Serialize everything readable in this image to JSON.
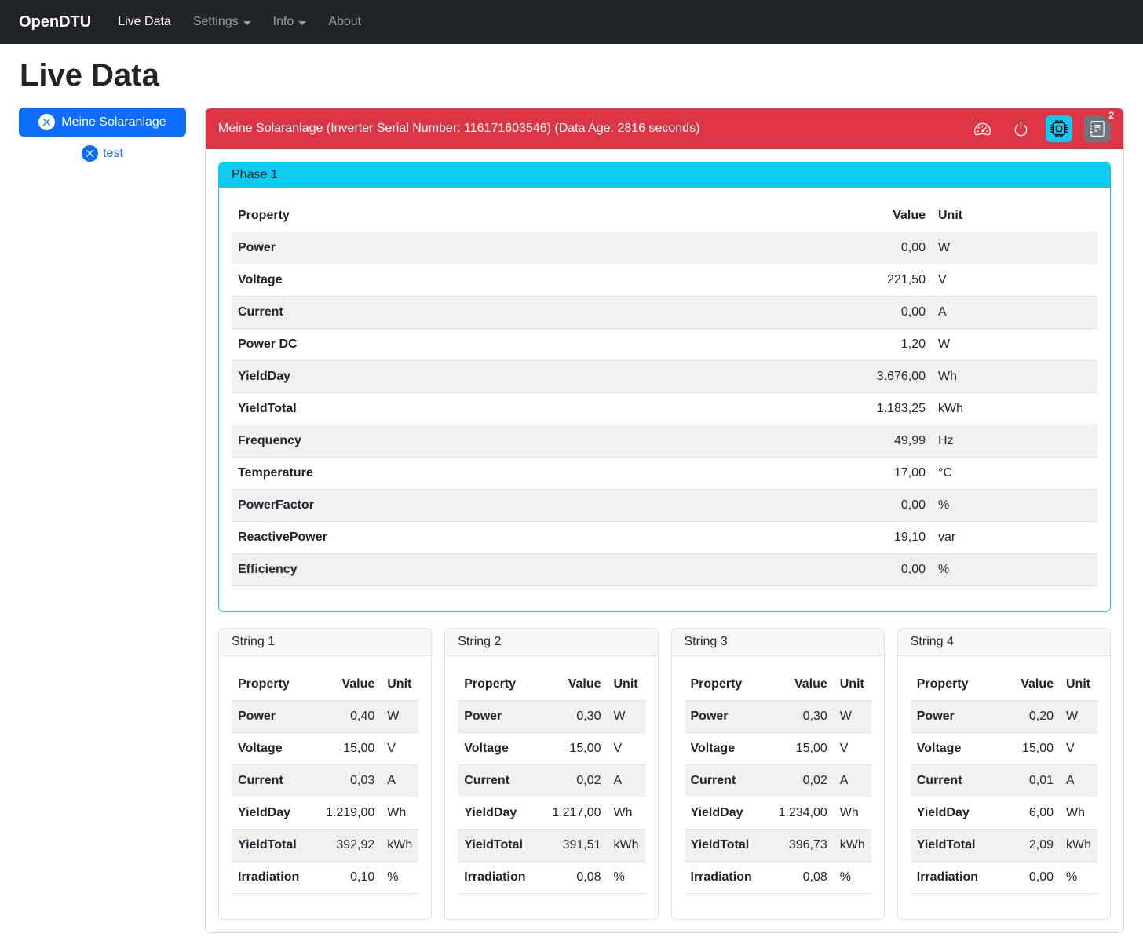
{
  "navbar": {
    "brand": "OpenDTU",
    "items": [
      {
        "label": "Live Data",
        "active": true,
        "dropdown": false
      },
      {
        "label": "Settings",
        "active": false,
        "dropdown": true
      },
      {
        "label": "Info",
        "active": false,
        "dropdown": true
      },
      {
        "label": "About",
        "active": false,
        "dropdown": false
      }
    ]
  },
  "page_title": "Live Data",
  "sidebar": {
    "inverters": [
      {
        "label": "Meine Solaranlage",
        "icon": "x-circle-icon",
        "selected": true
      },
      {
        "label": "test",
        "icon": "x-circle-icon",
        "selected": false
      }
    ]
  },
  "inverter_panel": {
    "header_title": "Meine Solaranlage (Inverter Serial Number: 116171603546) (Data Age: 2816 seconds)",
    "toolbar": {
      "buttons": [
        {
          "icon": "speedometer-icon"
        },
        {
          "icon": "power-icon"
        },
        {
          "icon": "cpu-icon"
        },
        {
          "icon": "journal-text-icon"
        }
      ],
      "events_badge_count": "2"
    }
  },
  "table_columns": {
    "property": "Property",
    "value": "Value",
    "unit": "Unit"
  },
  "phase": {
    "title": "Phase 1",
    "rows": [
      {
        "property": "Power",
        "value": "0,00",
        "unit": "W"
      },
      {
        "property": "Voltage",
        "value": "221,50",
        "unit": "V"
      },
      {
        "property": "Current",
        "value": "0,00",
        "unit": "A"
      },
      {
        "property": "Power DC",
        "value": "1,20",
        "unit": "W"
      },
      {
        "property": "YieldDay",
        "value": "3.676,00",
        "unit": "Wh"
      },
      {
        "property": "YieldTotal",
        "value": "1.183,25",
        "unit": "kWh"
      },
      {
        "property": "Frequency",
        "value": "49,99",
        "unit": "Hz"
      },
      {
        "property": "Temperature",
        "value": "17,00",
        "unit": "°C"
      },
      {
        "property": "PowerFactor",
        "value": "0,00",
        "unit": "%"
      },
      {
        "property": "ReactivePower",
        "value": "19,10",
        "unit": "var"
      },
      {
        "property": "Efficiency",
        "value": "0,00",
        "unit": "%"
      }
    ]
  },
  "strings": [
    {
      "title": "String 1",
      "rows": [
        {
          "property": "Power",
          "value": "0,40",
          "unit": "W"
        },
        {
          "property": "Voltage",
          "value": "15,00",
          "unit": "V"
        },
        {
          "property": "Current",
          "value": "0,03",
          "unit": "A"
        },
        {
          "property": "YieldDay",
          "value": "1.219,00",
          "unit": "Wh"
        },
        {
          "property": "YieldTotal",
          "value": "392,92",
          "unit": "kWh"
        },
        {
          "property": "Irradiation",
          "value": "0,10",
          "unit": "%"
        }
      ]
    },
    {
      "title": "String 2",
      "rows": [
        {
          "property": "Power",
          "value": "0,30",
          "unit": "W"
        },
        {
          "property": "Voltage",
          "value": "15,00",
          "unit": "V"
        },
        {
          "property": "Current",
          "value": "0,02",
          "unit": "A"
        },
        {
          "property": "YieldDay",
          "value": "1.217,00",
          "unit": "Wh"
        },
        {
          "property": "YieldTotal",
          "value": "391,51",
          "unit": "kWh"
        },
        {
          "property": "Irradiation",
          "value": "0,08",
          "unit": "%"
        }
      ]
    },
    {
      "title": "String 3",
      "rows": [
        {
          "property": "Power",
          "value": "0,30",
          "unit": "W"
        },
        {
          "property": "Voltage",
          "value": "15,00",
          "unit": "V"
        },
        {
          "property": "Current",
          "value": "0,02",
          "unit": "A"
        },
        {
          "property": "YieldDay",
          "value": "1.234,00",
          "unit": "Wh"
        },
        {
          "property": "YieldTotal",
          "value": "396,73",
          "unit": "kWh"
        },
        {
          "property": "Irradiation",
          "value": "0,08",
          "unit": "%"
        }
      ]
    },
    {
      "title": "String 4",
      "rows": [
        {
          "property": "Power",
          "value": "0,20",
          "unit": "W"
        },
        {
          "property": "Voltage",
          "value": "15,00",
          "unit": "V"
        },
        {
          "property": "Current",
          "value": "0,01",
          "unit": "A"
        },
        {
          "property": "YieldDay",
          "value": "6,00",
          "unit": "Wh"
        },
        {
          "property": "YieldTotal",
          "value": "2,09",
          "unit": "kWh"
        },
        {
          "property": "Irradiation",
          "value": "0,00",
          "unit": "%"
        }
      ]
    }
  ],
  "colors": {
    "navbar_bg": "#212529",
    "primary": "#0d6efd",
    "danger": "#dc3545",
    "info": "#0dcaf0",
    "secondary": "#6c757d",
    "stripe": "#f0f0f1",
    "border": "#dee2e6"
  }
}
